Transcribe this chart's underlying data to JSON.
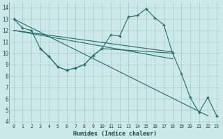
{
  "xlabel": "Humidex (Indice chaleur)",
  "bg_color": "#cce8e8",
  "grid_color": "#aacccc",
  "line_color": "#1a6e6a",
  "xlim": [
    -0.5,
    23.5
  ],
  "ylim": [
    3.8,
    14.5
  ],
  "yticks": [
    4,
    5,
    6,
    7,
    8,
    9,
    10,
    11,
    12,
    13,
    14
  ],
  "xticks": [
    0,
    1,
    2,
    3,
    4,
    5,
    6,
    7,
    8,
    9,
    10,
    11,
    12,
    13,
    14,
    15,
    16,
    17,
    18,
    19,
    20,
    21,
    22,
    23
  ],
  "series_main": {
    "x": [
      0,
      1,
      2,
      3,
      4,
      5,
      6,
      7,
      8,
      9,
      10,
      11,
      12,
      13,
      14,
      15,
      16,
      17,
      18,
      19,
      20,
      21,
      22,
      23
    ],
    "y": [
      13.0,
      12.2,
      12.0,
      10.4,
      9.7,
      8.8,
      8.5,
      8.7,
      9.0,
      9.8,
      10.4,
      11.6,
      11.5,
      13.2,
      13.3,
      13.9,
      13.1,
      12.5,
      10.0,
      null,
      null,
      null,
      null,
      null
    ]
  },
  "series_long_line": {
    "x": [
      0,
      22
    ],
    "y": [
      13.0,
      4.5
    ]
  },
  "series_flat1": {
    "x": [
      0,
      18
    ],
    "y": [
      12.0,
      10.1
    ]
  },
  "series_flat2": {
    "x": [
      0,
      18
    ],
    "y": [
      12.0,
      9.5
    ]
  },
  "series_lower": {
    "x": [
      3,
      4,
      5,
      6,
      7,
      8,
      9,
      10,
      18,
      19,
      20,
      21,
      22,
      23
    ],
    "y": [
      10.4,
      9.7,
      8.8,
      8.5,
      8.7,
      9.0,
      9.8,
      10.4,
      10.0,
      8.2,
      6.1,
      4.8,
      6.1,
      4.5
    ]
  }
}
